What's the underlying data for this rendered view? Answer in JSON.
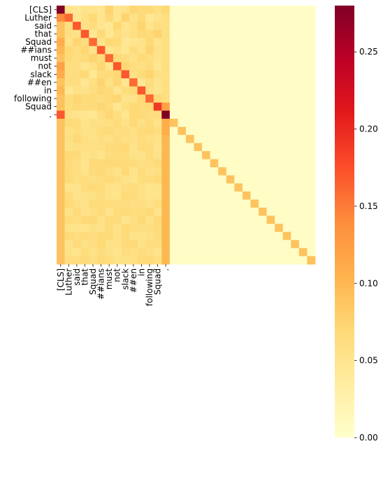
{
  "chart_data": {
    "type": "heatmap",
    "title": "",
    "xlabel": "",
    "ylabel": "",
    "n": 32,
    "x_tick_labels": [
      "[CLS]",
      "Luther",
      "said",
      "that",
      "Squad",
      "##ians",
      "must",
      "not",
      "slack",
      "##en",
      "in",
      "following",
      "Squad",
      "."
    ],
    "y_tick_labels": [
      "[CLS]",
      "Luther",
      "said",
      "that",
      "Squad",
      "##ians",
      "must",
      "not",
      "slack",
      "##en",
      "in",
      "following",
      "Squad",
      "."
    ],
    "colormap": "YlOrRd",
    "vmin": 0.0,
    "vmax": 0.28,
    "colorbar_ticks": [
      "0.00",
      "0.05",
      "0.10",
      "0.15",
      "0.20",
      "0.25"
    ],
    "colorbar_tick_values": [
      0.0,
      0.05,
      0.1,
      0.15,
      0.2,
      0.25
    ],
    "first_column_values": [
      0.28,
      0.14,
      0.09,
      0.09,
      0.11,
      0.1,
      0.09,
      0.12,
      0.11,
      0.09,
      0.1,
      0.09,
      0.09,
      0.17,
      0.09,
      0.09,
      0.09,
      0.09,
      0.09,
      0.09,
      0.09,
      0.09,
      0.09,
      0.09,
      0.09,
      0.09,
      0.09,
      0.09,
      0.09,
      0.09,
      0.09,
      0.09
    ],
    "sentence_diagonal_values": [
      0.28,
      0.16,
      0.17,
      0.17,
      0.16,
      0.17,
      0.16,
      0.17,
      0.17,
      0.16,
      0.17,
      0.16,
      0.19,
      0.28
    ],
    "last_token_column_values": [
      0.07,
      0.06,
      0.06,
      0.06,
      0.06,
      0.06,
      0.06,
      0.06,
      0.06,
      0.06,
      0.06,
      0.06,
      0.12,
      0.28,
      0.11,
      0.11,
      0.1,
      0.1,
      0.1,
      0.1,
      0.1,
      0.1,
      0.1,
      0.1,
      0.1,
      0.1,
      0.1,
      0.1,
      0.1,
      0.1,
      0.1,
      0.1
    ],
    "padding_diagonal_value": 0.09,
    "sentence_block_base": 0.06,
    "padding_rows_base": 0.06,
    "background_value": 0.005
  }
}
